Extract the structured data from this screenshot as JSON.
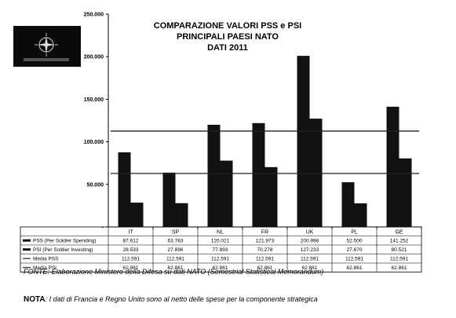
{
  "chart_data": {
    "type": "bar",
    "title_lines": [
      "COMPARAZIONE VALORI PSS e PSI",
      "PRINCIPALI PAESI NATO",
      "DATI 2011"
    ],
    "categories": [
      "IT",
      "SP",
      "NL",
      "FR",
      "UK",
      "PL",
      "GE"
    ],
    "ylim": [
      0,
      250000
    ],
    "y_ticks": [
      0,
      50000,
      100000,
      150000,
      200000,
      250000
    ],
    "y_tick_labels": [
      "-",
      "50.000",
      "100.000",
      "150.000",
      "200.000",
      "250.000"
    ],
    "grid": false,
    "series": [
      {
        "name": "PSS (Per Soldier Spending)",
        "kind": "bar",
        "values": [
          87612,
          63783,
          120021,
          121973,
          200998,
          52500,
          141252
        ],
        "value_labels": [
          "87.612",
          "63.783",
          "120.021",
          "121.973",
          "200.998",
          "52.500",
          "141.252"
        ]
      },
      {
        "name": "PSI (Per Soldier Investing)",
        "kind": "bar",
        "values": [
          28533,
          27896,
          77893,
          70278,
          127233,
          27670,
          80521
        ],
        "value_labels": [
          "28.533",
          "27.896",
          "77.893",
          "70.278",
          "127.233",
          "27.670",
          "80.521"
        ]
      },
      {
        "name": "Media PSS",
        "kind": "line",
        "values": [
          112591,
          112591,
          112591,
          112591,
          112591,
          112591,
          112591
        ],
        "value_labels": [
          "112.591",
          "112.591",
          "112.591",
          "112.591",
          "112.591",
          "112.591",
          "112.591"
        ]
      },
      {
        "name": "Media PSI",
        "kind": "line",
        "values": [
          62861,
          62861,
          62861,
          62861,
          62861,
          62861,
          62861
        ],
        "value_labels": [
          "62.861",
          "62.861",
          "62.861",
          "62.861",
          "62.861",
          "62.861",
          "62.861"
        ]
      }
    ],
    "data_table": true
  },
  "footer": {
    "source": "FONTE: Elaborazione Ministero della Difesa su dati NATO (Semestrial Statistical Memorandum)",
    "note_label": "NOTA",
    "note_text": ": I dati di Francia e Regno Unito sono al netto delle spese per la componente strategica"
  },
  "colors": {
    "bar": "#111111",
    "line": "#222222",
    "text": "#000000",
    "background": "#ffffff"
  },
  "icons": {
    "logo": "nato-compass-emblem-icon"
  }
}
